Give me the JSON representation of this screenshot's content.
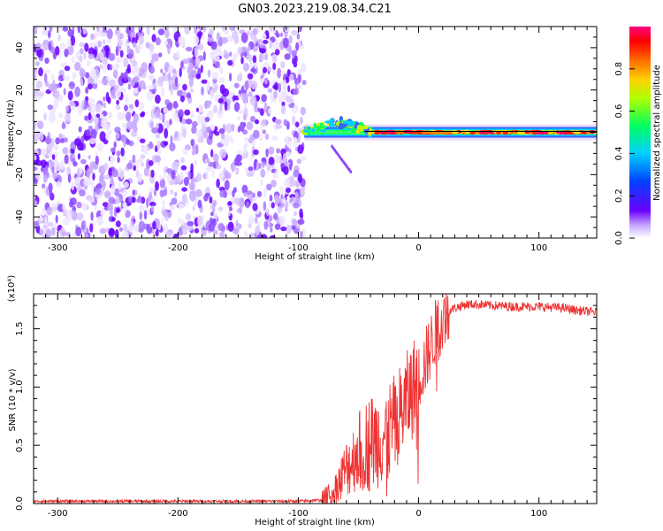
{
  "title": "GN03.2023.219.08.34.C21",
  "chart_data": [
    {
      "type": "heatmap",
      "xlabel": "Height of straight line (km)",
      "ylabel": "Frequency (Hz)",
      "xlim": [
        -320,
        148
      ],
      "ylim": [
        -50,
        50
      ],
      "xticks": [
        -300,
        -200,
        -100,
        0,
        100
      ],
      "yticks": [
        -40,
        -20,
        0,
        20,
        40
      ],
      "colorbar": {
        "label": "Normalized spectral amplitude",
        "range": [
          0.0,
          1.0
        ],
        "ticks": [
          0.0,
          0.2,
          0.4,
          0.6,
          0.8
        ],
        "tick_labels": [
          "0.0",
          "0.2",
          "0.4",
          "0.6",
          "0.8"
        ],
        "colors": [
          "#ffffff",
          "#6a00ff",
          "#0044ff",
          "#00d0ff",
          "#00ff40",
          "#ffff00",
          "#ff8000",
          "#ff0000",
          "#ff0080"
        ]
      },
      "regions": [
        {
          "x_range": [
            -320,
            -95
          ],
          "description_level": "noise",
          "amplitude": [
            0.0,
            0.15
          ]
        },
        {
          "x_range": [
            -95,
            148
          ],
          "center_frequency": 0,
          "amplitude_peak": 1.0
        }
      ]
    },
    {
      "type": "line",
      "xlabel": "Height of straight line (km)",
      "ylabel": "SNR (10 * v/v)",
      "scale_label": "(x10⁴)",
      "xlim": [
        -320,
        148
      ],
      "ylim": [
        0,
        1.8
      ],
      "xticks": [
        -300,
        -200,
        -100,
        0,
        100
      ],
      "yticks": [
        0.0,
        0.5,
        1.0,
        1.5
      ],
      "ytick_labels": [
        "0.0",
        "0.5",
        "1.0",
        "1.5"
      ],
      "line_color": "#ee3333",
      "series": [
        {
          "x": [
            -320,
            -200,
            -100,
            -80,
            -70,
            -65,
            -60,
            -55,
            -50,
            -45,
            -40,
            -35,
            -30,
            -25,
            -20,
            -15,
            -10,
            -5,
            0,
            5,
            10,
            15,
            20,
            25,
            30,
            40,
            50,
            60,
            80,
            100,
            120,
            130,
            148
          ],
          "values": [
            0.02,
            0.02,
            0.02,
            0.03,
            0.08,
            0.2,
            0.3,
            0.38,
            0.45,
            0.5,
            0.52,
            0.55,
            0.58,
            0.62,
            0.68,
            0.78,
            0.88,
            0.98,
            1.08,
            1.2,
            1.35,
            1.5,
            1.58,
            1.65,
            1.68,
            1.71,
            1.71,
            1.7,
            1.69,
            1.69,
            1.68,
            1.66,
            1.64
          ]
        }
      ]
    }
  ]
}
